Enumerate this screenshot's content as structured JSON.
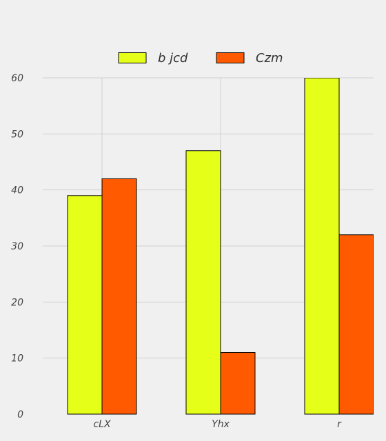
{
  "chart_data": {
    "type": "bar",
    "categories": [
      "cLX",
      "Yhx",
      "r"
    ],
    "series": [
      {
        "name": "b jcd",
        "values": [
          39,
          47,
          60
        ],
        "color": "#e5ff18"
      },
      {
        "name": "Czm",
        "values": [
          42,
          11,
          32
        ],
        "color": "#ff5a00"
      }
    ],
    "ylim": [
      0,
      60
    ],
    "yticks": [
      0,
      10,
      20,
      30,
      40,
      50,
      60
    ],
    "grid": true,
    "legend_position": "top-center",
    "title": "",
    "xlabel": "",
    "ylabel": ""
  }
}
